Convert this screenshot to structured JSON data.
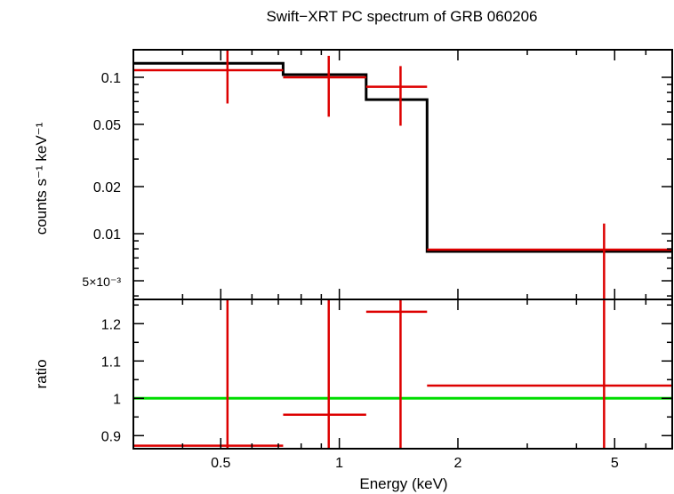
{
  "chart_data": [
    {
      "type": "step",
      "panel": "spectrum",
      "title": "Swift−XRT PC spectrum of GRB 060206",
      "xlabel": "",
      "ylabel": "counts s⁻¹ keV⁻¹",
      "xscale": "log",
      "yscale": "log",
      "xlim": [
        0.3,
        7.0
      ],
      "ylim": [
        0.0038,
        0.15
      ],
      "yticks": [
        {
          "value": 0.1,
          "label": "0.1"
        },
        {
          "value": 0.05,
          "label": "0.05"
        },
        {
          "value": 0.02,
          "label": "0.02"
        },
        {
          "value": 0.01,
          "label": "0.01"
        },
        {
          "value": 0.005,
          "label": "5×10⁻³"
        }
      ],
      "model": {
        "color": "#000000",
        "steps": [
          {
            "x0": 0.3,
            "x1": 0.72,
            "y": 0.123
          },
          {
            "x0": 0.72,
            "x1": 1.17,
            "y": 0.104
          },
          {
            "x0": 1.17,
            "x1": 1.67,
            "y": 0.072
          },
          {
            "x0": 1.67,
            "x1": 7.0,
            "y": 0.0077
          }
        ]
      },
      "data": {
        "color": "#dd0000",
        "points": [
          {
            "x": 0.52,
            "xlo": 0.3,
            "xhi": 0.72,
            "y": 0.111,
            "ylo": 0.068,
            "yhi": 0.151
          },
          {
            "x": 0.94,
            "xlo": 0.72,
            "xhi": 1.17,
            "y": 0.1,
            "ylo": 0.056,
            "yhi": 0.137
          },
          {
            "x": 1.43,
            "xlo": 1.17,
            "xhi": 1.67,
            "y": 0.087,
            "ylo": 0.049,
            "yhi": 0.118
          },
          {
            "x": 4.7,
            "xlo": 1.67,
            "xhi": 7.0,
            "y": 0.0079,
            "ylo": 0.0038,
            "yhi": 0.0116
          }
        ]
      }
    },
    {
      "type": "scatter",
      "panel": "ratio",
      "xlabel": "Energy (keV)",
      "ylabel": "ratio",
      "xscale": "log",
      "yscale": "linear",
      "xlim": [
        0.3,
        7.0
      ],
      "ylim": [
        0.865,
        1.265
      ],
      "yticks": [
        {
          "value": 0.9,
          "label": "0.9"
        },
        {
          "value": 1.0,
          "label": "1"
        },
        {
          "value": 1.1,
          "label": "1.1"
        },
        {
          "value": 1.2,
          "label": "1.2"
        }
      ],
      "xticks": [
        {
          "value": 0.5,
          "label": "0.5"
        },
        {
          "value": 1,
          "label": "1"
        },
        {
          "value": 2,
          "label": "2"
        },
        {
          "value": 5,
          "label": "5"
        }
      ],
      "reference_line": {
        "y": 1.0,
        "color": "#00dd00"
      },
      "data": {
        "color": "#dd0000",
        "points": [
          {
            "x": 0.52,
            "xlo": 0.3,
            "xhi": 0.72,
            "y": 0.873,
            "ylo": 0.865,
            "yhi": 1.265
          },
          {
            "x": 0.94,
            "xlo": 0.72,
            "xhi": 1.17,
            "y": 0.956,
            "ylo": 0.865,
            "yhi": 1.265
          },
          {
            "x": 1.43,
            "xlo": 1.17,
            "xhi": 1.67,
            "y": 1.232,
            "ylo": 0.865,
            "yhi": 1.265
          },
          {
            "x": 4.7,
            "xlo": 1.67,
            "xhi": 7.0,
            "y": 1.034,
            "ylo": 0.865,
            "yhi": 1.265
          }
        ]
      }
    }
  ]
}
